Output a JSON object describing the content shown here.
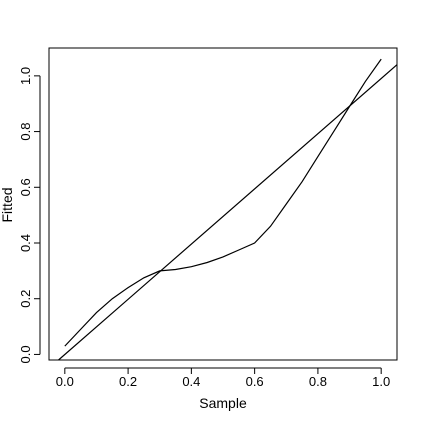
{
  "chart_data": {
    "type": "line",
    "title": "",
    "xlabel": "Sample",
    "ylabel": "Fitted",
    "xlim": [
      -0.05,
      1.05
    ],
    "ylim": [
      -0.02,
      1.1
    ],
    "xticks": [
      0.0,
      0.2,
      0.4,
      0.6,
      0.8,
      1.0
    ],
    "xtick_labels": [
      "0.0",
      "0.2",
      "0.4",
      "0.6",
      "0.8",
      "1.0"
    ],
    "yticks": [
      0.0,
      0.2,
      0.4,
      0.6,
      0.8,
      1.0
    ],
    "ytick_labels": [
      "0.0",
      "0.2",
      "0.4",
      "0.6",
      "0.8",
      "1.0"
    ],
    "grid": false,
    "legend": "none",
    "series": [
      {
        "x": [
          0.0,
          0.05,
          0.1,
          0.15,
          0.2,
          0.25,
          0.3,
          0.35,
          0.4,
          0.45,
          0.5,
          0.55,
          0.6,
          0.65,
          0.7,
          0.75,
          0.8,
          0.85,
          0.9,
          0.95,
          1.0
        ],
        "y": [
          0.03,
          0.09,
          0.15,
          0.2,
          0.24,
          0.275,
          0.3,
          0.305,
          0.315,
          0.33,
          0.35,
          0.375,
          0.4,
          0.46,
          0.54,
          0.62,
          0.71,
          0.8,
          0.89,
          0.98,
          1.06
        ]
      },
      {
        "x": [
          -0.02,
          1.05
        ],
        "y": [
          -0.02,
          1.04
        ]
      }
    ]
  }
}
